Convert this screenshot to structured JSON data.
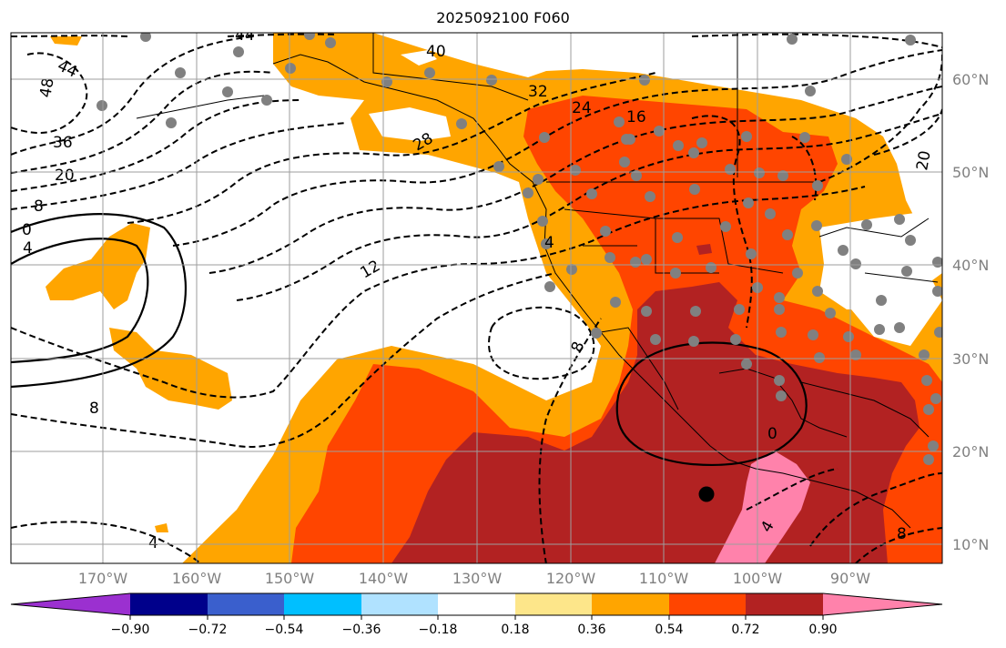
{
  "title": "2025092100 F060",
  "lon_labels": [
    "170°W",
    "160°W",
    "150°W",
    "140°W",
    "130°W",
    "120°W",
    "110°W",
    "100°W",
    "90°W"
  ],
  "lat_labels": [
    "60°N",
    "50°N",
    "40°N",
    "30°N",
    "20°N",
    "10°N"
  ],
  "colorbar": {
    "ticks": [
      "−0.90",
      "−0.72",
      "−0.54",
      "−0.36",
      "−0.18",
      "0.18",
      "0.36",
      "0.54",
      "0.72",
      "0.90"
    ],
    "colors": [
      "#9b30d0",
      "#00008b",
      "#3a5fcd",
      "#00bfff",
      "#b0e2ff",
      "#ffffff",
      "#fde68a",
      "#ffa500",
      "#ff4500",
      "#b22222",
      "#ff82ab"
    ]
  },
  "contour_labels": [
    "44",
    "44",
    "48",
    "40",
    "32",
    "24",
    "16",
    "36",
    "28",
    "20",
    "8",
    "0",
    "4",
    "12",
    "4",
    "8",
    "8",
    "4",
    "0",
    "8",
    "20",
    "4"
  ],
  "colors": {
    "orange": "#ffa500",
    "orangered": "#ff4500",
    "firebrick": "#b22222",
    "pink": "#ff82ab"
  }
}
